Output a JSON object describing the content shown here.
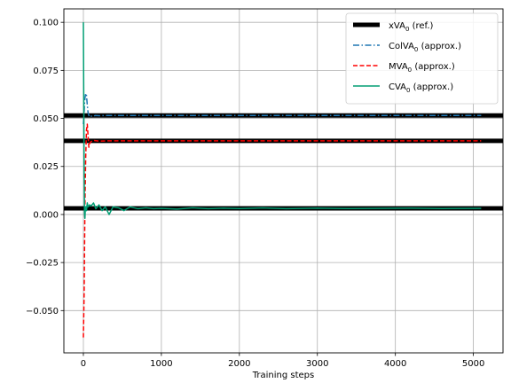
{
  "chart_data": {
    "type": "line",
    "title": "",
    "xlabel": "Training steps",
    "ylabel": "",
    "xlim": [
      -250,
      5380
    ],
    "ylim": [
      -0.072,
      0.107
    ],
    "xticks": [
      0,
      1000,
      2000,
      3000,
      4000,
      5000
    ],
    "xtick_labels": [
      "0",
      "1000",
      "2000",
      "3000",
      "4000",
      "5000"
    ],
    "yticks": [
      -0.05,
      -0.025,
      0.0,
      0.025,
      0.05,
      0.075,
      0.1
    ],
    "ytick_labels": [
      "−0.050",
      "−0.025",
      "0.000",
      "0.025",
      "0.050",
      "0.075",
      "0.100"
    ],
    "grid": true,
    "legend_position": "top-right",
    "legend": [
      {
        "base": "xVA",
        "sub": "0",
        "suffix": " (ref.)",
        "color": "#000000",
        "style": "thick-solid"
      },
      {
        "base": "ColVA",
        "sub": "0",
        "suffix": " (approx.)",
        "color": "#1f77b4",
        "style": "dashdot"
      },
      {
        "base": "MVA",
        "sub": "0",
        "suffix": " (approx.)",
        "color": "#ff0000",
        "style": "dashed"
      },
      {
        "base": "CVA",
        "sub": "0",
        "suffix": " (approx.)",
        "color": "#009e73",
        "style": "solid"
      }
    ],
    "reference_lines": [
      {
        "name": "xVA0 (ref.)",
        "y": 0.0515
      },
      {
        "name": "xVA0 (ref.)",
        "y": 0.0383
      },
      {
        "name": "xVA0 (ref.)",
        "y": 0.0032
      }
    ],
    "series": [
      {
        "name": "ColVA0 (approx.)",
        "color": "#1f77b4",
        "x": [
          0,
          8,
          15,
          22,
          30,
          40,
          50,
          60,
          75,
          90,
          110,
          150,
          200,
          300,
          500,
          1000,
          2000,
          3000,
          4000,
          5100
        ],
        "y": [
          0.047,
          0.052,
          0.058,
          0.061,
          0.063,
          0.062,
          0.057,
          0.053,
          0.051,
          0.0515,
          0.051,
          0.0515,
          0.0514,
          0.0515,
          0.0515,
          0.0515,
          0.0515,
          0.0515,
          0.0515,
          0.0515
        ]
      },
      {
        "name": "MVA0 (approx.)",
        "color": "#ff0000",
        "x": [
          0,
          10,
          20,
          30,
          40,
          50,
          60,
          70,
          80,
          100,
          130,
          200,
          300,
          500,
          1000,
          2000,
          3000,
          4000,
          5100
        ],
        "y": [
          -0.064,
          -0.04,
          0.005,
          0.03,
          0.044,
          0.047,
          0.041,
          0.035,
          0.037,
          0.038,
          0.0385,
          0.0382,
          0.0383,
          0.0383,
          0.0383,
          0.0383,
          0.0383,
          0.0383,
          0.0383
        ]
      },
      {
        "name": "CVA0 (approx.)",
        "color": "#009e73",
        "x": [
          0,
          5,
          10,
          15,
          20,
          25,
          30,
          40,
          50,
          60,
          80,
          100,
          130,
          160,
          200,
          240,
          280,
          330,
          380,
          450,
          520,
          600,
          700,
          800,
          900,
          1000,
          1200,
          1400,
          1600,
          1800,
          2000,
          2300,
          2600,
          3000,
          3400,
          3800,
          4200,
          4600,
          5100
        ],
        "y": [
          0.1,
          0.06,
          0.02,
          0.0,
          -0.002,
          0.003,
          0.004,
          0.002,
          0.006,
          0.004,
          0.005,
          0.0045,
          0.006,
          0.003,
          0.005,
          0.002,
          0.004,
          0.0,
          0.004,
          0.0035,
          0.002,
          0.004,
          0.003,
          0.0035,
          0.003,
          0.0032,
          0.0028,
          0.0035,
          0.003,
          0.0033,
          0.0031,
          0.0034,
          0.003,
          0.0033,
          0.0031,
          0.0032,
          0.0033,
          0.0031,
          0.0032
        ]
      }
    ]
  }
}
